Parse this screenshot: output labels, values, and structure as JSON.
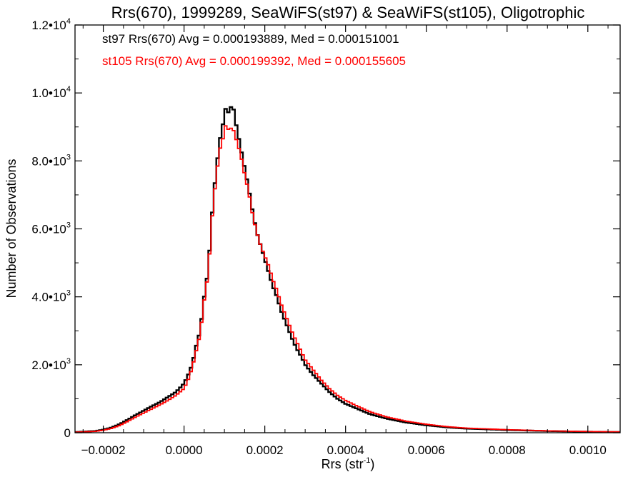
{
  "chart_data": {
    "type": "line",
    "step": true,
    "title": "Rrs(670), 1999289, SeaWiFS(st97) & SeaWiFS(st105), Oligotrophic",
    "xlabel": {
      "base": "Rrs (str",
      "sup": "-1",
      "close": ")"
    },
    "ylabel": "Number of Observations",
    "xlim": [
      -0.00027,
      0.00108
    ],
    "ylim": [
      0,
      12000
    ],
    "xticks": [
      {
        "value": -0.0002,
        "label": "−0.0002"
      },
      {
        "value": 0.0,
        "label": "0.0000"
      },
      {
        "value": 0.0002,
        "label": "0.0002"
      },
      {
        "value": 0.0004,
        "label": "0.0004"
      },
      {
        "value": 0.0006,
        "label": "0.0006"
      },
      {
        "value": 0.0008,
        "label": "0.0008"
      },
      {
        "value": 0.001,
        "label": "0.0010"
      }
    ],
    "yticks": [
      {
        "value": 0,
        "mant": "0",
        "exp": ""
      },
      {
        "value": 2000,
        "mant": "2.0•10",
        "exp": "3"
      },
      {
        "value": 4000,
        "mant": "4.0•10",
        "exp": "3"
      },
      {
        "value": 6000,
        "mant": "6.0•10",
        "exp": "3"
      },
      {
        "value": 8000,
        "mant": "8.0•10",
        "exp": "3"
      },
      {
        "value": 10000,
        "mant": "1.0•10",
        "exp": "4"
      },
      {
        "value": 12000,
        "mant": "1.2•10",
        "exp": "4"
      }
    ],
    "annotations": [
      {
        "text": "st97 Rrs(670) Avg = 0.000193889, Med = 0.000151001",
        "color": "#000000"
      },
      {
        "text": "st105 Rrs(670) Avg = 0.000199392, Med = 0.000155605",
        "color": "#ff0000"
      }
    ],
    "series": [
      {
        "color": "#000000",
        "points": [
          [
            -0.00027,
            20
          ],
          [
            -0.00022,
            50
          ],
          [
            -0.0002,
            90
          ],
          [
            -0.00018,
            150
          ],
          [
            -0.00016,
            250
          ],
          [
            -0.00014,
            380
          ],
          [
            -0.00012,
            520
          ],
          [
            -0.0001,
            650
          ],
          [
            -8e-05,
            780
          ],
          [
            -6e-05,
            900
          ],
          [
            -4e-05,
            1050
          ],
          [
            -2e-05,
            1200
          ],
          [
            0.0,
            1450
          ],
          [
            1e-05,
            1700
          ],
          [
            2e-05,
            2000
          ],
          [
            3e-05,
            2550
          ],
          [
            4e-05,
            3000
          ],
          [
            5e-05,
            4000
          ],
          [
            6e-05,
            4800
          ],
          [
            7e-05,
            6500
          ],
          [
            8e-05,
            7800
          ],
          [
            9e-05,
            8700
          ],
          [
            0.0001,
            9300
          ],
          [
            0.000105,
            9700
          ],
          [
            0.00011,
            9400
          ],
          [
            0.00012,
            9700
          ],
          [
            0.00013,
            9000
          ],
          [
            0.00014,
            8400
          ],
          [
            0.00015,
            7800
          ],
          [
            0.00016,
            7200
          ],
          [
            0.00017,
            6500
          ],
          [
            0.00018,
            5900
          ],
          [
            0.00019,
            5500
          ],
          [
            0.0002,
            5100
          ],
          [
            0.00021,
            4700
          ],
          [
            0.00022,
            4300
          ],
          [
            0.00023,
            4000
          ],
          [
            0.00024,
            3600
          ],
          [
            0.00025,
            3300
          ],
          [
            0.00026,
            3000
          ],
          [
            0.00027,
            2700
          ],
          [
            0.00028,
            2450
          ],
          [
            0.00029,
            2250
          ],
          [
            0.0003,
            2000
          ],
          [
            0.00032,
            1700
          ],
          [
            0.00034,
            1450
          ],
          [
            0.00036,
            1200
          ],
          [
            0.00038,
            1000
          ],
          [
            0.0004,
            850
          ],
          [
            0.00043,
            700
          ],
          [
            0.00046,
            550
          ],
          [
            0.0005,
            420
          ],
          [
            0.00055,
            300
          ],
          [
            0.0006,
            220
          ],
          [
            0.00065,
            160
          ],
          [
            0.0007,
            120
          ],
          [
            0.0008,
            80
          ],
          [
            0.0009,
            50
          ],
          [
            0.001,
            30
          ],
          [
            0.00108,
            20
          ]
        ]
      },
      {
        "color": "#ff0000",
        "points": [
          [
            -0.00027,
            15
          ],
          [
            -0.00022,
            40
          ],
          [
            -0.0002,
            75
          ],
          [
            -0.00018,
            125
          ],
          [
            -0.00016,
            210
          ],
          [
            -0.00014,
            330
          ],
          [
            -0.00012,
            460
          ],
          [
            -0.0001,
            580
          ],
          [
            -8e-05,
            700
          ],
          [
            -6e-05,
            820
          ],
          [
            -4e-05,
            950
          ],
          [
            -2e-05,
            1100
          ],
          [
            0.0,
            1300
          ],
          [
            1e-05,
            1550
          ],
          [
            2e-05,
            1900
          ],
          [
            3e-05,
            2400
          ],
          [
            4e-05,
            2900
          ],
          [
            5e-05,
            3900
          ],
          [
            6e-05,
            4700
          ],
          [
            7e-05,
            6400
          ],
          [
            8e-05,
            7600
          ],
          [
            9e-05,
            8400
          ],
          [
            0.0001,
            8800
          ],
          [
            0.000105,
            9200
          ],
          [
            0.00011,
            8900
          ],
          [
            0.00012,
            9000
          ],
          [
            0.00013,
            8600
          ],
          [
            0.00014,
            8200
          ],
          [
            0.00015,
            7600
          ],
          [
            0.00016,
            7100
          ],
          [
            0.00017,
            6400
          ],
          [
            0.00018,
            5900
          ],
          [
            0.00019,
            5500
          ],
          [
            0.0002,
            5200
          ],
          [
            0.00021,
            4900
          ],
          [
            0.00022,
            4500
          ],
          [
            0.00023,
            4200
          ],
          [
            0.00024,
            3800
          ],
          [
            0.00025,
            3500
          ],
          [
            0.00026,
            3200
          ],
          [
            0.00027,
            2900
          ],
          [
            0.00028,
            2650
          ],
          [
            0.00029,
            2400
          ],
          [
            0.0003,
            2150
          ],
          [
            0.00032,
            1850
          ],
          [
            0.00034,
            1550
          ],
          [
            0.00036,
            1300
          ],
          [
            0.00038,
            1100
          ],
          [
            0.0004,
            950
          ],
          [
            0.00043,
            780
          ],
          [
            0.00046,
            620
          ],
          [
            0.0005,
            470
          ],
          [
            0.00055,
            340
          ],
          [
            0.0006,
            250
          ],
          [
            0.00065,
            180
          ],
          [
            0.0007,
            135
          ],
          [
            0.0008,
            90
          ],
          [
            0.0009,
            55
          ],
          [
            0.001,
            35
          ],
          [
            0.00108,
            25
          ]
        ]
      }
    ]
  }
}
